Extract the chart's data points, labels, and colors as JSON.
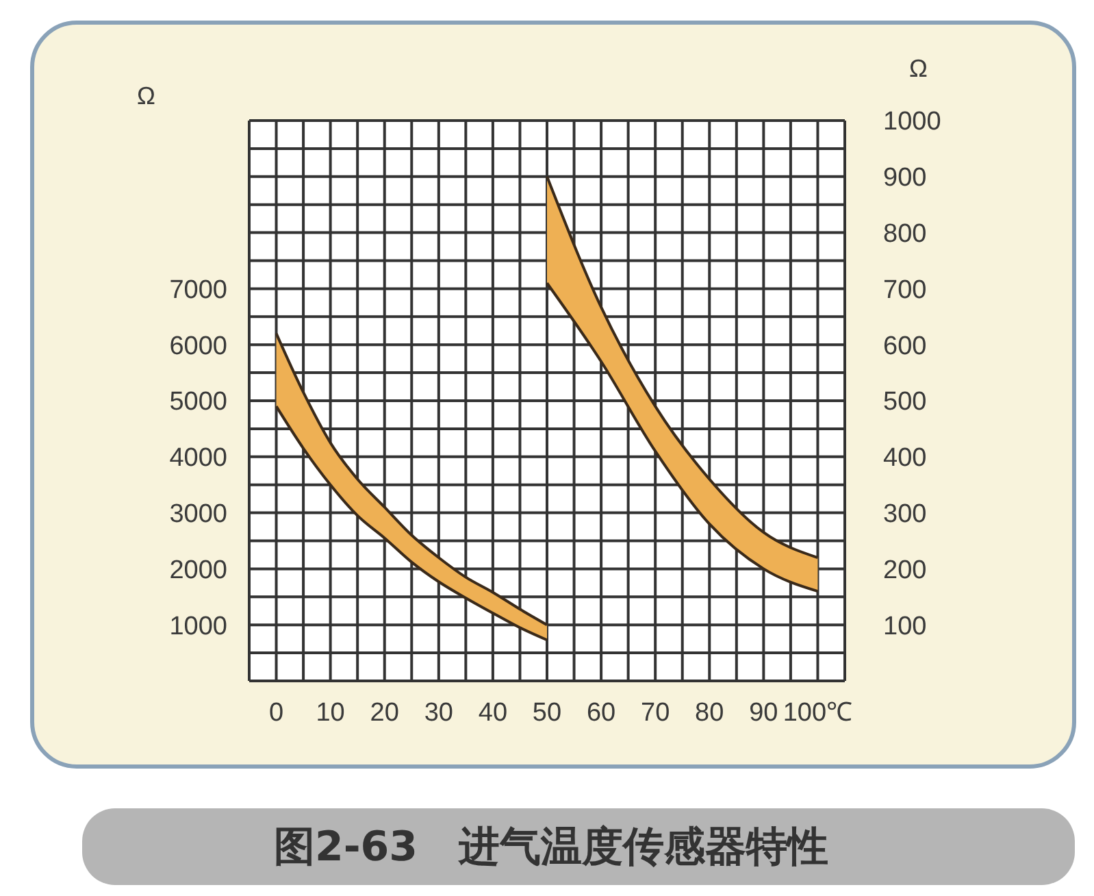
{
  "chart_data": {
    "type": "line",
    "title": "图2-63　进气温度传感器特性",
    "ylabel": "Ω",
    "y2label": "Ω",
    "xlim": [
      -5,
      105
    ],
    "xticks": [
      {
        "value": -5,
        "label": null
      },
      0,
      {
        "value": 5,
        "label": null
      },
      10,
      {
        "value": 15,
        "label": null
      },
      20,
      {
        "value": 25,
        "label": null
      },
      30,
      {
        "value": 35,
        "label": null
      },
      40,
      {
        "value": 45,
        "label": null
      },
      50,
      {
        "value": 55,
        "label": null
      },
      60,
      {
        "value": 65,
        "label": null
      },
      70,
      {
        "value": 75,
        "label": null
      },
      80,
      {
        "value": 85,
        "label": null
      },
      90,
      {
        "value": 95,
        "label": null
      },
      {
        "value": 100,
        "label": "100℃"
      },
      {
        "value": 105,
        "label": null
      }
    ],
    "ylim": [
      0,
      10000
    ],
    "yticks": [
      {
        "value": 0,
        "label": null
      },
      {
        "value": 500,
        "label": null
      },
      1000,
      {
        "value": 1500,
        "label": null
      },
      2000,
      {
        "value": 2500,
        "label": null
      },
      3000,
      {
        "value": 3500,
        "label": null
      },
      4000,
      {
        "value": 4500,
        "label": null
      },
      5000,
      {
        "value": 5500,
        "label": null
      },
      6000,
      {
        "value": 6500,
        "label": null
      },
      7000,
      {
        "value": 7500,
        "label": null
      },
      {
        "value": 8000,
        "label": null
      },
      {
        "value": 8500,
        "label": null
      },
      {
        "value": 9000,
        "label": null
      },
      {
        "value": 9500,
        "label": null
      },
      {
        "value": 10000,
        "label": null
      }
    ],
    "y2lim": [
      0,
      1000
    ],
    "y2ticks": [
      100,
      200,
      300,
      400,
      500,
      600,
      700,
      800,
      900,
      1000
    ],
    "grid": true,
    "series": [
      {
        "color": "#3a2a1a",
        "x": [
          0,
          5,
          10,
          15,
          20,
          25,
          30,
          35,
          40,
          45,
          50
        ],
        "values": [
          6200,
          5150,
          4250,
          3600,
          3100,
          2600,
          2200,
          1850,
          1580,
          1280,
          1000
        ],
        "upper": [
          6200,
          5150,
          4250,
          3600,
          3100,
          2600,
          2200,
          1850,
          1580,
          1280,
          1000
        ],
        "lower": [
          4900,
          4150,
          3500,
          2950,
          2550,
          2120,
          1770,
          1480,
          1210,
          950,
          730
        ]
      },
      {
        "color": "#3a2a1a",
        "x": [
          0,
          5,
          10,
          15,
          20,
          25,
          30,
          35,
          40,
          45,
          50
        ],
        "values": [
          4900,
          4150,
          3500,
          2950,
          2550,
          2120,
          1770,
          1480,
          1210,
          950,
          730
        ]
      },
      {
        "color": "#3a2a1a",
        "axis": "y2",
        "x": [
          50,
          60,
          70,
          80,
          90,
          100
        ],
        "values": [
          900,
          667,
          490,
          360,
          265,
          220
        ],
        "upper": [
          900,
          667,
          490,
          360,
          265,
          220
        ],
        "lower": [
          710,
          570,
          410,
          280,
          200,
          160
        ]
      },
      {
        "color": "#3a2a1a",
        "axis": "y2",
        "x": [
          50,
          60,
          70,
          80,
          90,
          100
        ],
        "values": [
          710,
          570,
          410,
          280,
          200,
          160
        ]
      }
    ]
  }
}
